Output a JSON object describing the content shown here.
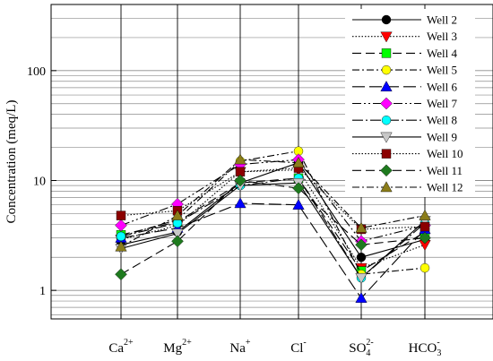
{
  "chart_data": {
    "type": "line",
    "title": "",
    "xlabel": "",
    "ylabel": "Concentration (meq/L)",
    "yscale": "log",
    "ylim": [
      0.55,
      400
    ],
    "y_ticks": [
      {
        "value": 1,
        "label": "1"
      },
      {
        "value": 10,
        "label": "10"
      },
      {
        "value": 100,
        "label": "100"
      }
    ],
    "categories": [
      {
        "base": "Ca",
        "sup": "2+",
        "sub": ""
      },
      {
        "base": "Mg",
        "sup": "2+",
        "sub": ""
      },
      {
        "base": "Na",
        "sup": "+",
        "sub": ""
      },
      {
        "base": "Cl",
        "sup": "-",
        "sub": ""
      },
      {
        "base": "SO",
        "sup": "2-",
        "sub": "4"
      },
      {
        "base": "HCO",
        "sup": "-",
        "sub": "3"
      }
    ],
    "grid": true,
    "legend_position": "top-right",
    "series": [
      {
        "name": "Well 2",
        "color": "#000000",
        "marker": "circle",
        "dash": "",
        "values": [
          2.6,
          3.4,
          9.5,
          14.5,
          2.0,
          2.9
        ]
      },
      {
        "name": "Well 3",
        "color": "#ff0000",
        "marker": "triangle-down",
        "dash": "1.5,2",
        "values": [
          2.9,
          3.9,
          12.0,
          12.5,
          1.6,
          2.6
        ]
      },
      {
        "name": "Well 4",
        "color": "#00ff00",
        "marker": "square",
        "dash": "10,5",
        "values": [
          3.2,
          4.2,
          9.5,
          10.5,
          1.5,
          3.4
        ]
      },
      {
        "name": "Well 5",
        "color": "#ffff00",
        "marker": "circle",
        "dash": "8,3,2,3",
        "values": [
          3.1,
          4.4,
          15.0,
          18.5,
          1.4,
          1.6
        ]
      },
      {
        "name": "Well 6",
        "color": "#0000ff",
        "marker": "triangle-up",
        "dash": "14,5",
        "values": [
          3.0,
          3.7,
          6.2,
          6.0,
          0.85,
          3.6
        ]
      },
      {
        "name": "Well 7",
        "color": "#ff00ff",
        "marker": "diamond",
        "dash": "10,3,2,3,2,3",
        "values": [
          3.9,
          6.1,
          14.0,
          15.5,
          2.8,
          3.9
        ]
      },
      {
        "name": "Well 8",
        "color": "#00ffff",
        "marker": "circle",
        "dash": "12,3,2,3",
        "values": [
          3.1,
          4.1,
          9.0,
          10.5,
          1.3,
          4.1
        ]
      },
      {
        "name": "Well 9",
        "color": "#c8c8c8",
        "marker": "triangle-down",
        "dash": "",
        "values": [
          2.4,
          3.3,
          9.0,
          9.5,
          1.3,
          4.3
        ]
      },
      {
        "name": "Well 10",
        "color": "#8b0000",
        "marker": "square",
        "dash": "1.5,2",
        "values": [
          4.8,
          5.3,
          12.0,
          13.0,
          3.6,
          3.8
        ]
      },
      {
        "name": "Well 11",
        "color": "#1e7a1e",
        "marker": "diamond",
        "dash": "10,5",
        "values": [
          1.4,
          2.8,
          10.0,
          8.5,
          2.6,
          3.0
        ]
      },
      {
        "name": "Well 12",
        "color": "#8b7d1a",
        "marker": "triangle-up",
        "dash": "8,3,2,3",
        "values": [
          2.5,
          4.8,
          15.5,
          14.5,
          3.7,
          4.8
        ]
      }
    ]
  }
}
